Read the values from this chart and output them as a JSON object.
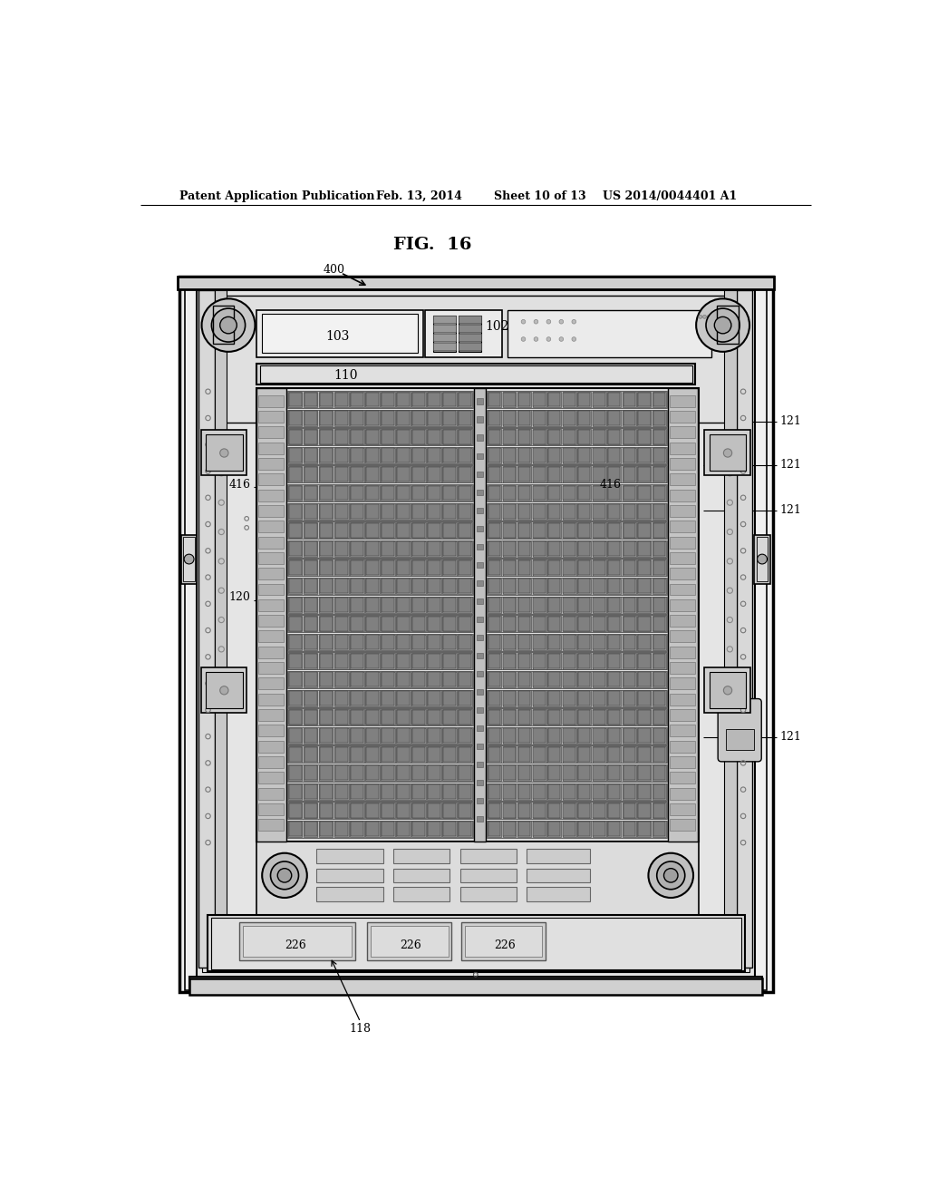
{
  "background_color": "#ffffff",
  "header_text": "Patent Application Publication",
  "header_date": "Feb. 13, 2014",
  "header_sheet": "Sheet 10 of 13",
  "header_patent": "US 2014/0044401 A1",
  "fig_label": "FIG.  16",
  "line_color": "#000000",
  "text_color": "#000000",
  "gray_light": "#d8d8d8",
  "gray_mid": "#b0b0b0",
  "gray_dark": "#808080",
  "gray_panel": "#e8e8e8",
  "gray_frame": "#c8c8c8",
  "connector_fill": "#a0a0a0",
  "connector_dark": "#606060"
}
